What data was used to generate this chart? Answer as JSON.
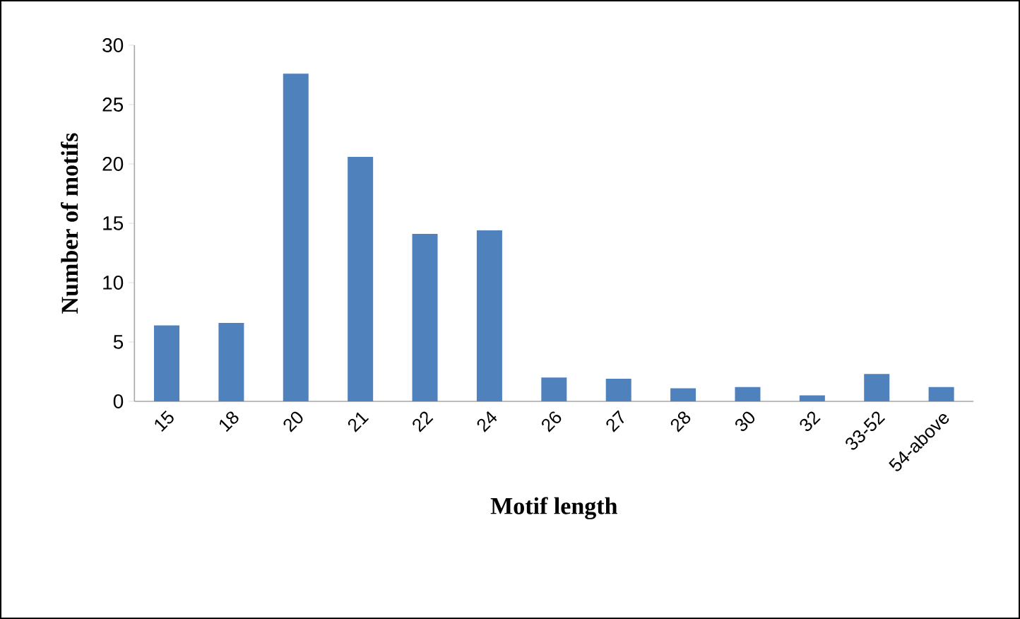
{
  "chart_data": {
    "type": "bar",
    "xlabel": "Motif length",
    "ylabel": "Number of motifs",
    "categories": [
      "15",
      "18",
      "20",
      "21",
      "22",
      "24",
      "26",
      "27",
      "28",
      "30",
      "32",
      "33-52",
      "54-above"
    ],
    "values": [
      6.4,
      6.6,
      27.6,
      20.6,
      14.1,
      14.4,
      2.0,
      1.9,
      1.1,
      1.2,
      0.5,
      2.3,
      1.2
    ],
    "color": "#4f81bd",
    "ylim": [
      0,
      30
    ],
    "yticks": [
      0,
      5,
      10,
      15,
      20,
      25,
      30
    ]
  }
}
